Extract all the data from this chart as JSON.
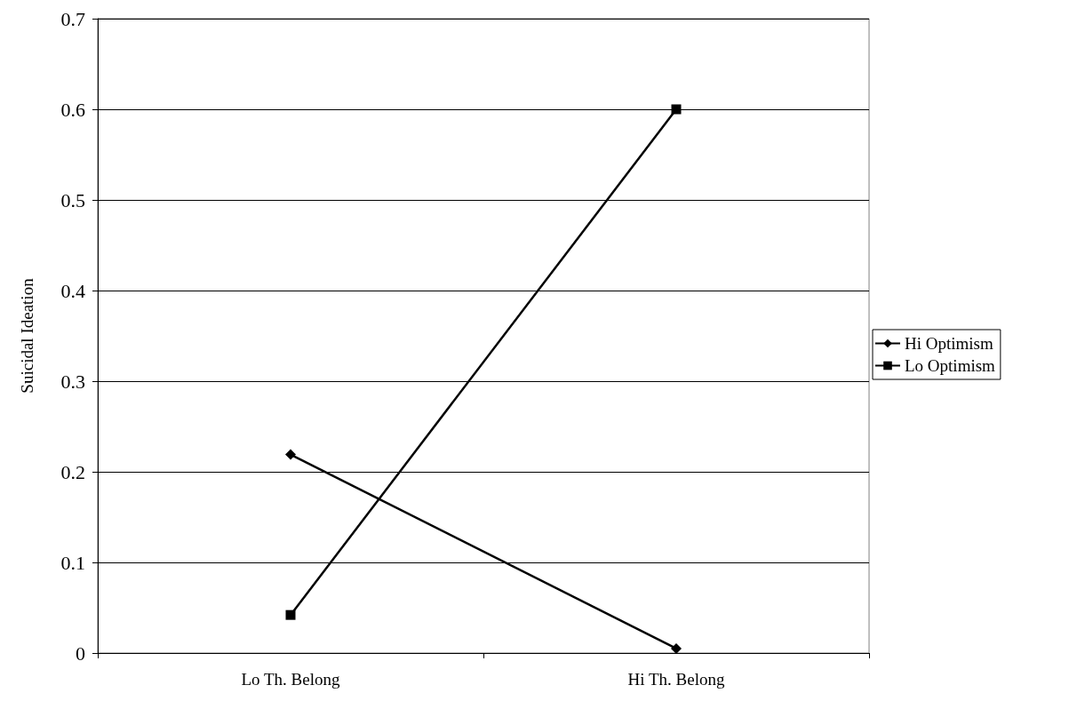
{
  "chart_data": {
    "type": "line",
    "ylabel": "Suicidal Ideation",
    "categories": [
      "Lo Th. Belong",
      "Hi Th. Belong"
    ],
    "series": [
      {
        "name": "Hi Optimism",
        "color": "#000000",
        "marker": "diamond",
        "values": [
          0.219,
          0.005
        ]
      },
      {
        "name": "Lo Optimism",
        "color": "#000000",
        "marker": "square",
        "values": [
          0.042,
          0.6
        ]
      }
    ],
    "ylim": [
      0,
      0.7
    ],
    "yticks": [
      0,
      0.1,
      0.2,
      0.3,
      0.4,
      0.5,
      0.6,
      0.7
    ],
    "grid": "y",
    "legend": "right",
    "line_style": "solid"
  }
}
